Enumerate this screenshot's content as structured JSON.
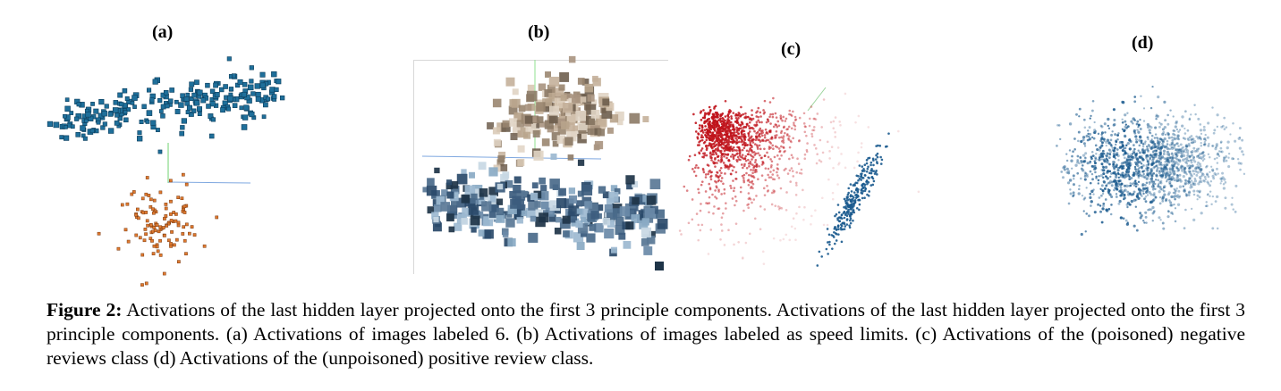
{
  "figure": {
    "panels": [
      {
        "label": "(a)"
      },
      {
        "label": "(b)"
      },
      {
        "label": "(c)"
      },
      {
        "label": "(d)"
      }
    ],
    "caption_label": "Figure 2:",
    "caption_text": " Activations of the last hidden layer projected onto the first 3 principle components. Activations of the last hidden layer projected onto the first 3 principle components. (a) Activations of images labeled 6. (b) Activations of images labeled as speed limits. (c) Activations of the (poisoned) negative reviews class (d) Activations of the (unpoisoned) positive review class."
  },
  "colors": {
    "blue_cluster": "#1f6f9a",
    "orange_cluster": "#e07a30",
    "red_cluster": "#c0141c",
    "dark_blue": "#1a5a8e",
    "axis_green": "#6fd06f",
    "axis_blue": "#7fa8e0"
  }
}
